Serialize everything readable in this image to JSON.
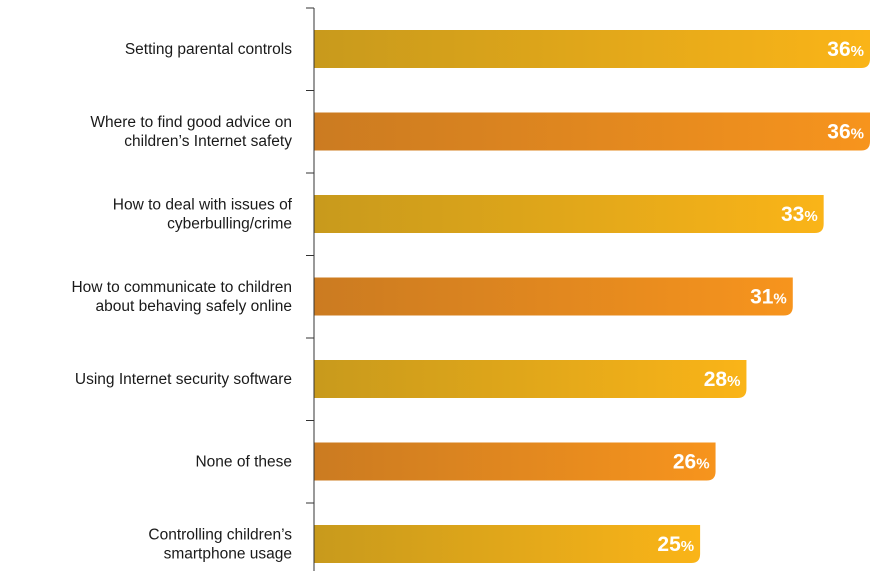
{
  "chart_data": {
    "type": "bar",
    "orientation": "horizontal",
    "categories": [
      "Setting parental controls",
      "Where to find good advice on children’s Internet safety",
      "How to deal with issues of cyberbulling/crime",
      "How to communicate to children about behaving safely online",
      "Using Internet security software",
      "None of these",
      "Controlling children’s smartphone usage"
    ],
    "category_lines": [
      [
        "Setting parental controls"
      ],
      [
        "Where to find good advice on",
        "children’s Internet safety"
      ],
      [
        "How to deal with issues of",
        "cyberbulling/crime"
      ],
      [
        "How to communicate to children",
        "about behaving safely online"
      ],
      [
        "Using Internet security software"
      ],
      [
        "None of these"
      ],
      [
        "Controlling children’s",
        "smartphone usage"
      ]
    ],
    "values": [
      36,
      36,
      33,
      31,
      28,
      26,
      25
    ],
    "value_suffix": "%",
    "xlim": [
      0,
      36
    ],
    "grid": false,
    "legend": "none",
    "title": "",
    "xlabel": "",
    "ylabel": "",
    "colors": {
      "gold_start": "#C89A1C",
      "gold_end": "#FAB418",
      "orange_start": "#CB7B21",
      "orange_end": "#F7941D",
      "axis": "#333333",
      "label_text": "#1a1a1a",
      "value_text": "#ffffff"
    },
    "bar_color_pattern": [
      "gold",
      "orange",
      "gold",
      "orange",
      "gold",
      "orange",
      "gold"
    ]
  }
}
